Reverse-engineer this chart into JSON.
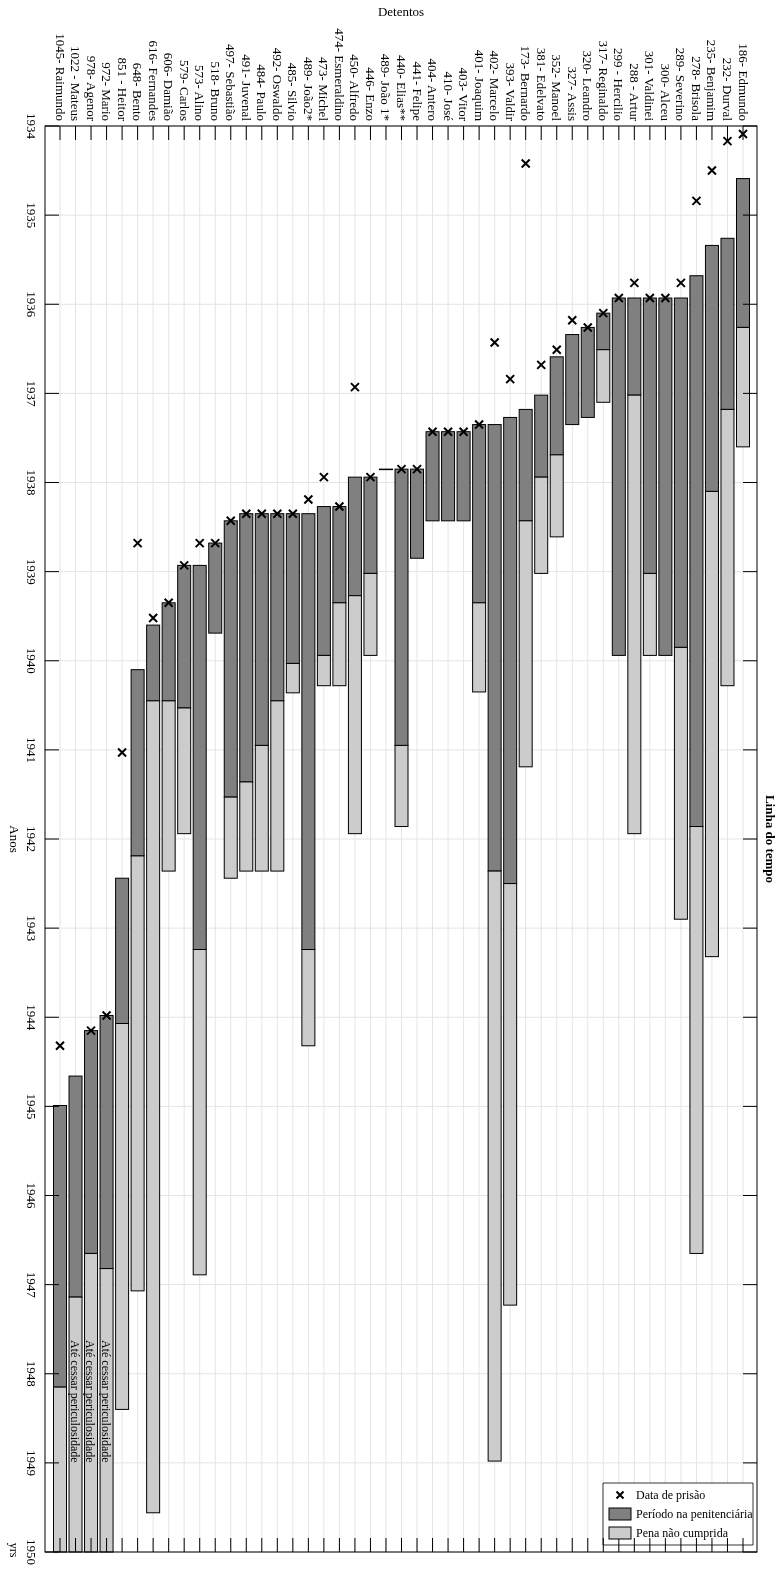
{
  "chart_data": {
    "type": "bar",
    "title": "Linha do tempo",
    "xlabel": "Detentos",
    "ylabel": "Anos",
    "categories": [
      "1045- Raimundo",
      "1022 - Mateus",
      "978- Agenor",
      "972- Mario",
      "851 - Heitor",
      "648- Bento",
      "616- Fernandes",
      "606- Damião",
      "579- Carlos",
      "573- Alino",
      "518- Bruno",
      "497- Sebastião",
      "491- Juvenal",
      "484- Paulo",
      "492- Oswaldo",
      "485- Silvio",
      "489- João2*",
      "473- Michel",
      "474- Esmeraldino",
      "450- Alfredo",
      "446- Enzo",
      "489- João 1*",
      "440- Elias**",
      "441- Felipe",
      "404- Antero",
      "410- José",
      "403- Vitor",
      "401- Joaquim",
      "402- Marcelo",
      "393- Valdir",
      "173- Bernardo",
      "381- Edelvato",
      "352- Manoel",
      "327- Assis",
      "320- Leandro",
      "317- Reginaldo",
      "299 - Hercilio",
      "288 - Artur",
      "301- Valdinei",
      "300- Alceu",
      "289- Severino",
      "278- Brisola",
      "235- Benjamim",
      "232- Durval",
      "186- Edmundo"
    ],
    "series": [
      {
        "name": "Período na penitenciária",
        "color": "#808080",
        "base": [
          1944.99,
          1944.66,
          1944.15,
          1943.98,
          1942.44,
          1940.1,
          1939.6,
          1939.35,
          1938.93,
          1938.93,
          1938.68,
          1938.43,
          1938.35,
          1938.35,
          1938.35,
          1938.35,
          1938.35,
          1938.27,
          1938.27,
          1937.94,
          1937.94,
          1937.85,
          1937.85,
          1937.85,
          1937.43,
          1937.43,
          1937.43,
          1937.35,
          1937.35,
          1937.27,
          1937.18,
          1937.02,
          1936.59,
          1936.34,
          1936.26,
          1936.1,
          1935.93,
          1935.93,
          1935.93,
          1935.93,
          1935.93,
          1935.68,
          1935.34,
          1935.26,
          1934.59
        ],
        "values": [
          3.16,
          2.48,
          2.5,
          2.84,
          1.63,
          2.09,
          0.85,
          1.1,
          1.6,
          4.31,
          1.01,
          3.1,
          3.01,
          2.6,
          2.1,
          1.68,
          4.89,
          1.67,
          1.08,
          1.33,
          1.08,
          0,
          3.1,
          1.0,
          1.0,
          1.0,
          1.0,
          2.0,
          5.01,
          5.23,
          1.25,
          0.92,
          1.1,
          1.01,
          1.01,
          0.41,
          4.01,
          1.09,
          3.09,
          4.01,
          3.92,
          6.18,
          2.76,
          1.92,
          1.67
        ]
      },
      {
        "name": "Pena não cumprida",
        "color": "#cccccc",
        "base": [
          1948.15,
          1947.14,
          1946.65,
          1946.82,
          1944.07,
          1942.19,
          1940.45,
          1940.45,
          1940.53,
          1943.24,
          null,
          1941.53,
          1941.36,
          1940.95,
          1940.45,
          1940.03,
          1943.24,
          1939.94,
          1939.35,
          1939.27,
          1939.02,
          null,
          1940.95,
          null,
          null,
          null,
          null,
          1939.35,
          1942.36,
          1942.5,
          1938.43,
          1937.94,
          1937.69,
          null,
          null,
          1936.51,
          null,
          1937.02,
          1939.02,
          null,
          1939.85,
          1941.86,
          1938.1,
          1937.18,
          1936.26
        ],
        "values": [
          1.85,
          2.86,
          3.35,
          3.18,
          4.33,
          4.88,
          9.11,
          1.91,
          1.41,
          3.65,
          null,
          0.91,
          1.0,
          1.41,
          1.91,
          0.33,
          1.08,
          0.34,
          0.93,
          2.67,
          0.92,
          null,
          0.91,
          null,
          null,
          null,
          null,
          1.0,
          6.62,
          4.73,
          2.76,
          1.08,
          0.92,
          null,
          null,
          0.59,
          null,
          4.92,
          0.92,
          null,
          3.05,
          4.79,
          5.22,
          3.1,
          1.34
        ]
      },
      {
        "name": "Data de prisão",
        "type": "scatter",
        "color": "#000000",
        "marker": "cross",
        "x": [
          "1045- Raimundo",
          "978- Agenor",
          "972- Mario",
          "851 - Heitor",
          "648- Bento",
          "616- Fernandes",
          "606- Damião",
          "579- Carlos",
          "573- Alino",
          "518- Bruno",
          "497- Sebastião",
          "491- Juvenal",
          "484- Paulo",
          "492- Oswaldo",
          "485- Silvio",
          "489- João2*",
          "473- Michel",
          "474- Esmeraldino",
          "450- Alfredo",
          "446- Enzo",
          "440- Elias**",
          "441- Felipe",
          "404- Antero",
          "410- José",
          "403- Vitor",
          "401- Joaquim",
          "402- Marcelo",
          "393- Valdir",
          "173- Bernardo",
          "381- Edelvato",
          "352- Manoel",
          "327- Assis",
          "320- Leandro",
          "317- Reginaldo",
          "299 - Hercilio",
          "288 - Artur",
          "301- Valdinei",
          "300- Alceu",
          "289- Severino",
          "278- Brisola",
          "235- Benjamim",
          "232- Durval",
          "186- Edmundo"
        ],
        "values": [
          1944.32,
          1944.15,
          1943.98,
          1941.03,
          1938.68,
          1939.52,
          1939.35,
          1938.93,
          1938.68,
          1938.68,
          1938.43,
          1938.35,
          1938.35,
          1938.35,
          1938.35,
          1938.19,
          1937.94,
          1938.27,
          1936.93,
          1937.94,
          1937.85,
          1937.85,
          1937.43,
          1937.43,
          1937.43,
          1937.35,
          1936.43,
          1936.84,
          1934.42,
          1936.68,
          1936.51,
          1936.18,
          1936.26,
          1936.1,
          1935.93,
          1935.76,
          1935.93,
          1935.93,
          1935.76,
          1934.84,
          1934.5,
          1934.17,
          1934.09
        ]
      }
    ],
    "ylim": [
      1950,
      1934
    ],
    "yticks": [
      1934,
      1935,
      1936,
      1937,
      1938,
      1939,
      1940,
      1941,
      1942,
      1943,
      1944,
      1945,
      1946,
      1947,
      1948,
      1949,
      1950
    ],
    "grid": true,
    "legend": "bottom right",
    "annotations": [
      "Até cessar periculosidade",
      "Até cessar periculosidade",
      "Até cessar periculosidade",
      "yrs"
    ]
  }
}
